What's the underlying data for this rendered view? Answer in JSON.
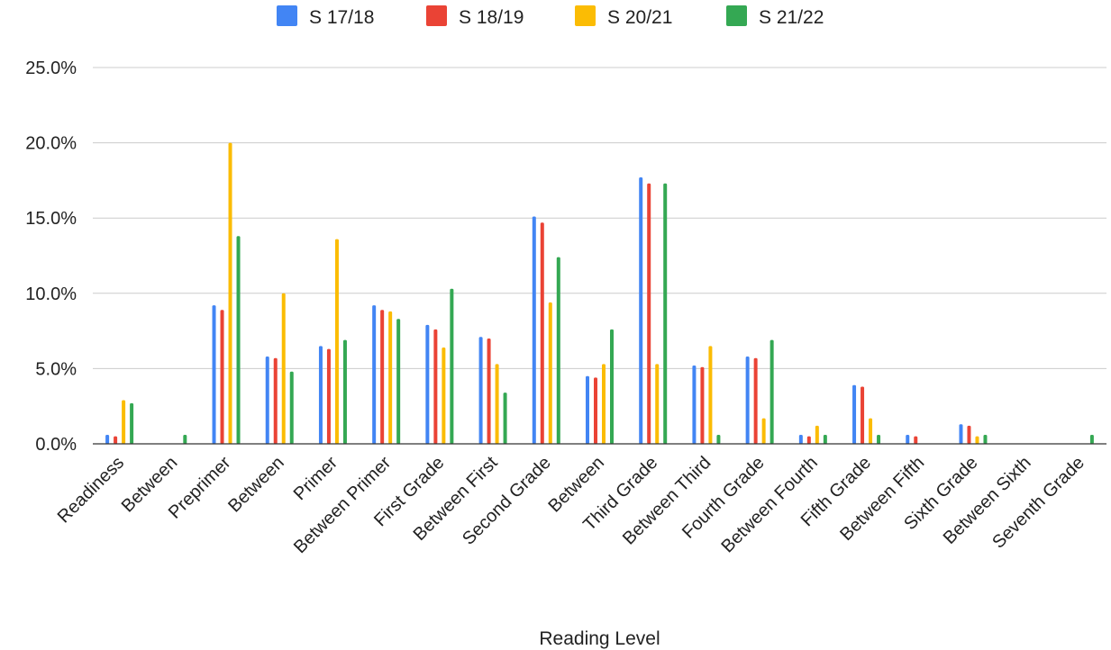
{
  "chart_data": {
    "type": "bar",
    "xlabel": "Reading Level",
    "ylabel": "",
    "ylim": [
      0,
      25
    ],
    "yticks": [
      0,
      5,
      10,
      15,
      20,
      25
    ],
    "ytick_labels": [
      "0.0%",
      "5.0%",
      "10.0%",
      "15.0%",
      "20.0%",
      "25.0%"
    ],
    "grid": true,
    "legend_position": "top",
    "categories": [
      "Readiness",
      "Between",
      "Preprimer",
      "Between",
      "Primer",
      "Between Primer",
      "First Grade",
      "Between First",
      "Second Grade",
      "Between",
      "Third Grade",
      "Between Third",
      "Fourth Grade",
      "Between Fourth",
      "Fifth Grade",
      "Between Fifth",
      "Sixth Grade",
      "Between Sixth",
      "Seventh Grade"
    ],
    "series": [
      {
        "name": "S 17/18",
        "color": "#4285f4",
        "values": [
          0.6,
          0,
          9.2,
          5.8,
          6.5,
          9.2,
          7.9,
          7.1,
          15.1,
          4.5,
          17.7,
          5.2,
          5.8,
          0.6,
          3.9,
          0.6,
          1.3,
          0,
          0
        ]
      },
      {
        "name": "S 18/19",
        "color": "#ea4335",
        "values": [
          0.5,
          0,
          8.9,
          5.7,
          6.3,
          8.9,
          7.6,
          7.0,
          14.7,
          4.4,
          17.3,
          5.1,
          5.7,
          0.5,
          3.8,
          0.5,
          1.2,
          0,
          0
        ]
      },
      {
        "name": "S 20/21",
        "color": "#fbbc04",
        "values": [
          2.9,
          0,
          20.0,
          10.0,
          13.6,
          8.8,
          6.4,
          5.3,
          9.4,
          5.3,
          5.3,
          6.5,
          1.7,
          1.2,
          1.7,
          0,
          0.5,
          0,
          0
        ]
      },
      {
        "name": "S 21/22",
        "color": "#34a853",
        "values": [
          2.7,
          0.6,
          13.8,
          4.8,
          6.9,
          8.3,
          10.3,
          3.4,
          12.4,
          7.6,
          17.3,
          0.6,
          6.9,
          0.6,
          0.6,
          0,
          0.6,
          0,
          0.6
        ]
      }
    ]
  }
}
